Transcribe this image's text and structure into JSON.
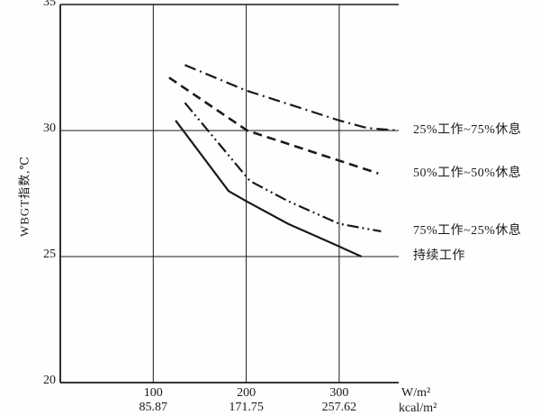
{
  "page": {
    "background": "#fefefe",
    "ink_color": "#1a1a1a"
  },
  "chart_data": {
    "type": "line",
    "title": "",
    "x_axis": {
      "unit_primary": "W/m²",
      "unit_secondary": "kcal/m²",
      "min": 0,
      "max": 364,
      "ticks": [
        {
          "value": 100,
          "label": "100",
          "label2": "85.87"
        },
        {
          "value": 200,
          "label": "200",
          "label2": "171.75"
        },
        {
          "value": 300,
          "label": "300",
          "label2": "257.62"
        }
      ],
      "grid": [
        100,
        200,
        300
      ]
    },
    "y_axis": {
      "title": "WBGT指数,℃",
      "min": 20,
      "max": 35,
      "ticks": [
        {
          "value": 35,
          "label": "35"
        },
        {
          "value": 30,
          "label": "30"
        },
        {
          "value": 25,
          "label": "25"
        },
        {
          "value": 20,
          "label": "20"
        }
      ],
      "grid": [
        30,
        25
      ]
    },
    "grid_on": true,
    "legend_position": "right",
    "series": [
      {
        "name": "25%工作~75%休息",
        "style": "dashdot",
        "points": [
          [
            134,
            32.6
          ],
          [
            199,
            31.6
          ],
          [
            300,
            30.4
          ],
          [
            330,
            30.1
          ],
          [
            364,
            30.0
          ]
        ]
      },
      {
        "name": "50%工作~50%休息",
        "style": "dashed",
        "points": [
          [
            117,
            32.1
          ],
          [
            201,
            30.0
          ],
          [
            342,
            28.3
          ]
        ]
      },
      {
        "name": "75%工作~25%休息",
        "style": "dashdotdot",
        "points": [
          [
            134,
            31.1
          ],
          [
            204,
            28.0
          ],
          [
            245,
            27.2
          ],
          [
            300,
            26.3
          ],
          [
            345,
            26.0
          ]
        ]
      },
      {
        "name": "持续工作",
        "style": "solid",
        "points": [
          [
            124,
            30.4
          ],
          [
            181,
            27.6
          ],
          [
            200,
            27.2
          ],
          [
            245,
            26.3
          ],
          [
            300,
            25.4
          ],
          [
            324,
            25.0
          ]
        ]
      }
    ]
  }
}
